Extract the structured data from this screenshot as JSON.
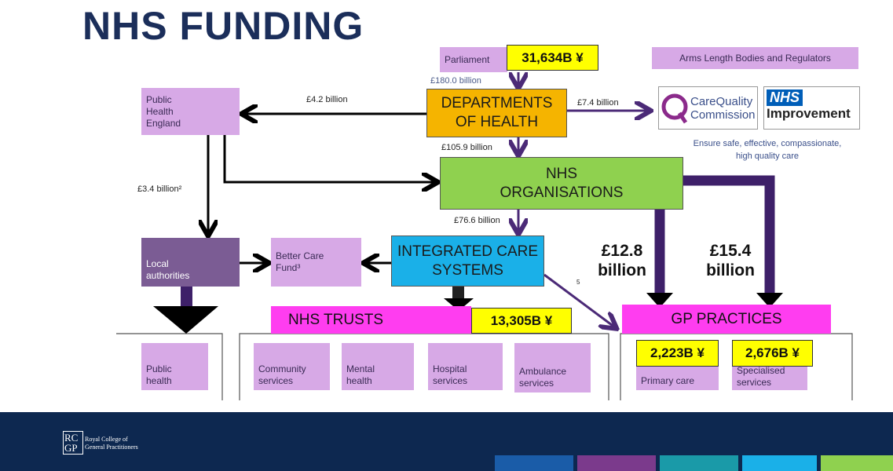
{
  "title": "NHS FUNDING",
  "parliament": {
    "label": "Parliament",
    "amount": "31,634B ¥"
  },
  "departments": "DEPARTMENTS OF HEALTH",
  "arms_length": {
    "label": "Arms Length Bodies and Regulators",
    "cqc_line1": "CareQuality",
    "cqc_line2": "Commission",
    "nhs": "NHS",
    "improvement": "Improvement",
    "note": "Ensure safe, effective, compassionate, high quality care"
  },
  "nhs_organisations": "NHS ORGANISATIONS",
  "integrated_care": "INTEGRATED CARE SYSTEMS",
  "public_health_england": "Public Health England",
  "local_authorities": "Local authorities",
  "better_care_fund": "Better Care Fund³",
  "flows": {
    "parliament": "£180.0 billion",
    "phe": "£4.2 billion",
    "regulators": "£7.4 billion",
    "nhs_orgs": "£105.9 billion",
    "local": "£3.4 billion²",
    "ics": "£76.6 billion",
    "gp_left": "£12.8 billion",
    "gp_right": "£15.4 billion",
    "ics_gp": "5"
  },
  "nhs_trusts": {
    "label": "NHS TRUSTS",
    "amount": "13,305B ¥",
    "items": [
      "Community services",
      "Mental health",
      "Hospital services",
      "Ambulance services"
    ]
  },
  "public_health": "Public health",
  "gp_practices": {
    "label": "GP PRACTICES",
    "primary_amount": "2,223B ¥",
    "primary": "Primary care",
    "specialised_amount": "2,676B ¥",
    "specialised": "Specialised services"
  },
  "footer": {
    "logo": "RCGP",
    "name": "Royal College of General Practitioners"
  }
}
